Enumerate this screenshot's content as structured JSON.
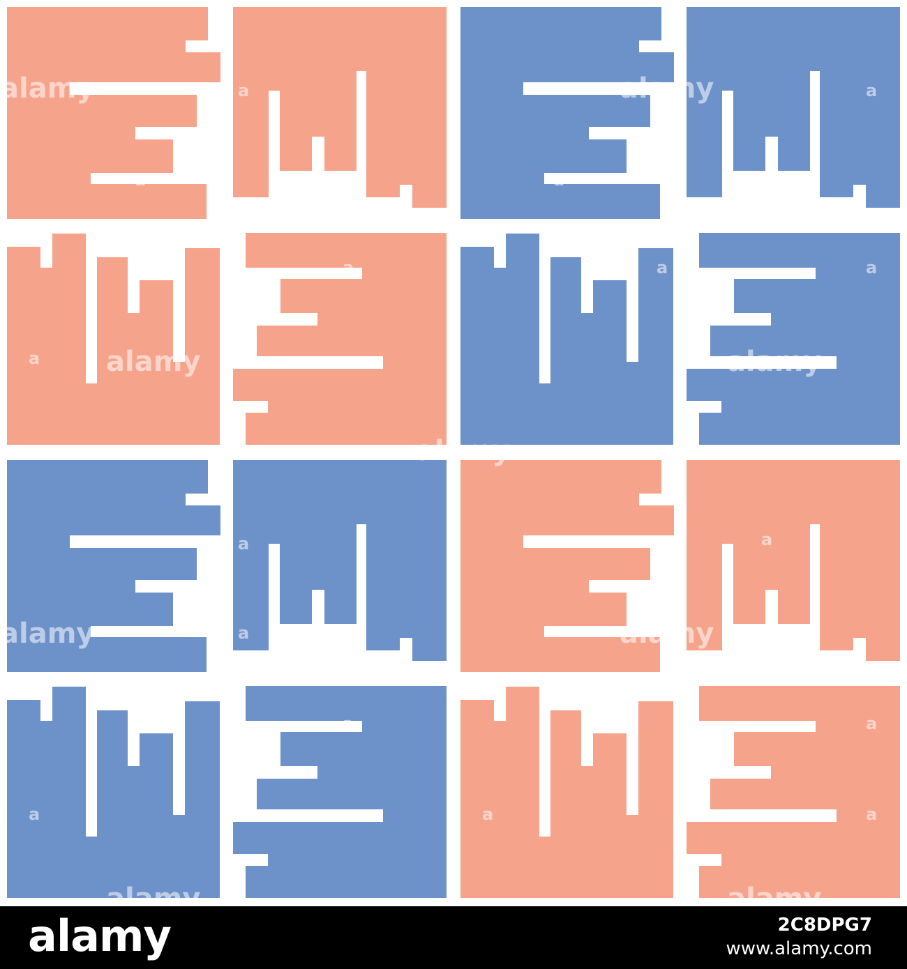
{
  "pattern": {
    "tile_colors": {
      "salmon": "#f6a38b",
      "blue": "#6d91c9"
    },
    "quadrant_colors": [
      [
        "salmon",
        "blue"
      ],
      [
        "blue",
        "salmon"
      ]
    ],
    "watermark": {
      "word": "alamy",
      "short": "a"
    }
  },
  "footer": {
    "logo": "alamy",
    "image_id": "2C8DPG7",
    "url": "www.alamy.com",
    "background": "#000000"
  }
}
